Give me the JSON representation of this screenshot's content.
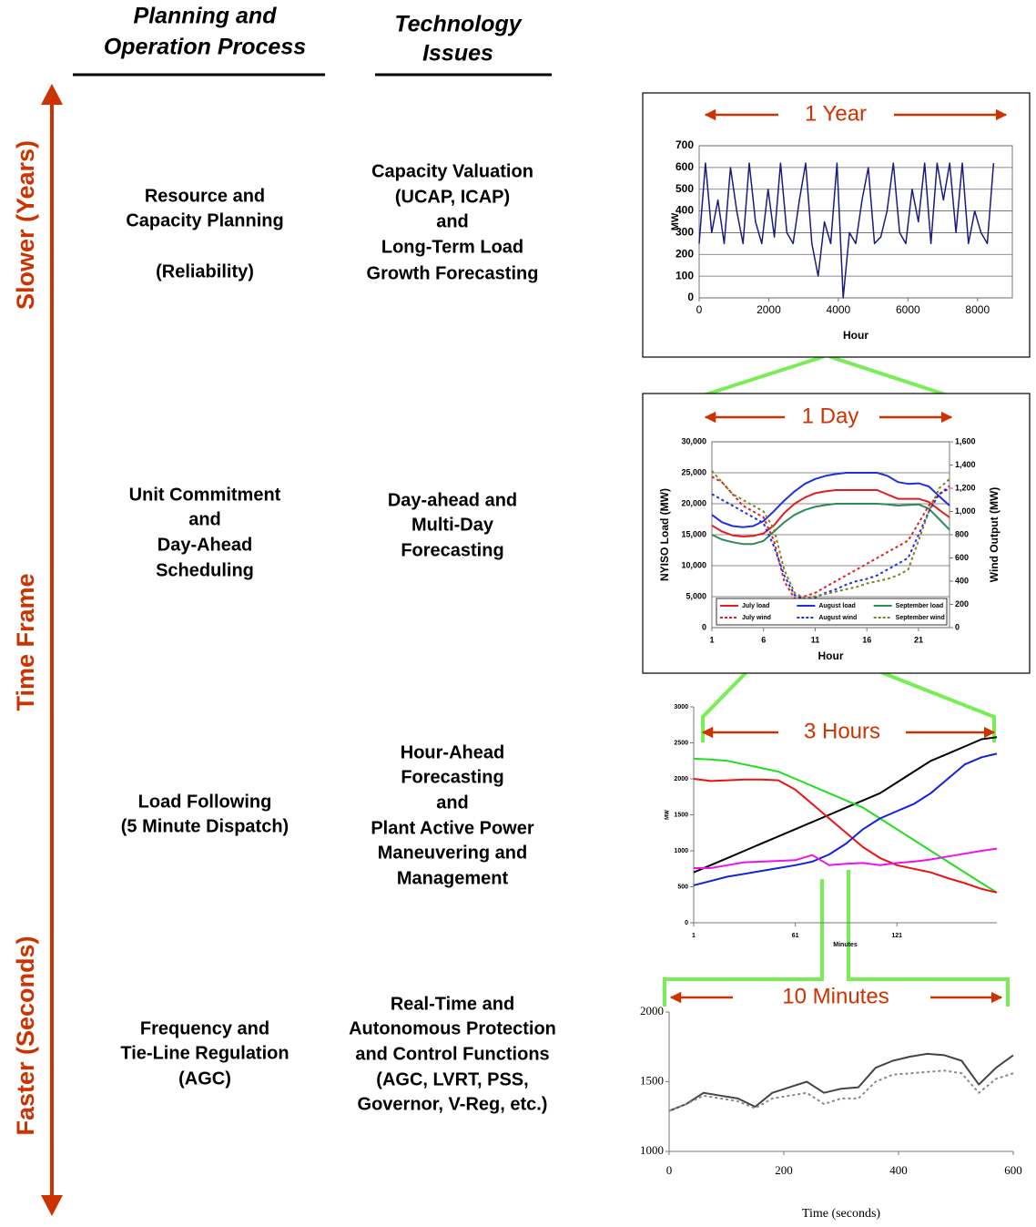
{
  "header": {
    "process": [
      "Planning and",
      "Operation Process"
    ],
    "issues": [
      "Technology",
      "Issues"
    ]
  },
  "axis": {
    "top": "Slower (Years)",
    "middle": "Time Frame",
    "bottom": "Faster (Seconds)"
  },
  "rows": [
    {
      "process": [
        "Resource and",
        "Capacity Planning",
        "(Reliability)"
      ],
      "issues": [
        "Capacity Valuation",
        "(UCAP, ICAP)",
        "and",
        "Long-Term Load",
        "Growth Forecasting"
      ]
    },
    {
      "process": [
        "Unit Commitment",
        "and",
        "Day-Ahead",
        "Scheduling"
      ],
      "issues": [
        "Day-ahead and",
        "Multi-Day",
        "Forecasting"
      ]
    },
    {
      "process": [
        "Load Following",
        "(5 Minute Dispatch)"
      ],
      "issues": [
        "Hour-Ahead",
        "Forecasting",
        "and",
        "Plant Active Power",
        "Maneuvering and",
        "Management"
      ]
    },
    {
      "process": [
        "Frequency and",
        "Tie-Line Regulation",
        "(AGC)"
      ],
      "issues": [
        "Real-Time and",
        "Autonomous Protection",
        "and Control Functions",
        "(AGC, LVRT, PSS,",
        "Governor, V-Reg, etc.)"
      ]
    }
  ],
  "charts": [
    {
      "type": "line",
      "title": "1 Year",
      "ylabel": "MW",
      "xlabel": "Hour",
      "grid": true,
      "xlim": [
        0,
        9000
      ],
      "ylim": [
        0,
        700
      ],
      "xticks": [
        0,
        2000,
        4000,
        6000,
        8000
      ],
      "yticks": [
        0,
        100,
        200,
        300,
        400,
        500,
        600,
        700
      ],
      "x": [
        0,
        180,
        360,
        540,
        720,
        900,
        1080,
        1260,
        1440,
        1620,
        1800,
        1980,
        2160,
        2340,
        2520,
        2700,
        2880,
        3060,
        3240,
        3420,
        3600,
        3780,
        3960,
        4140,
        4320,
        4500,
        4680,
        4860,
        5040,
        5220,
        5400,
        5580,
        5760,
        5940,
        6120,
        6300,
        6480,
        6660,
        6840,
        7020,
        7200,
        7380,
        7560,
        7740,
        7920,
        8100,
        8280,
        8460
      ],
      "series": [
        {
          "color": "#1a1a80",
          "values": [
            250,
            620,
            300,
            450,
            250,
            600,
            400,
            250,
            620,
            350,
            250,
            500,
            280,
            620,
            300,
            250,
            450,
            620,
            250,
            100,
            350,
            250,
            620,
            0,
            300,
            250,
            450,
            600,
            250,
            280,
            400,
            620,
            300,
            250,
            500,
            350,
            620,
            250,
            620,
            450,
            620,
            300,
            620,
            250,
            400,
            300,
            250,
            620
          ]
        }
      ]
    },
    {
      "type": "line",
      "title": "1 Day",
      "ylabel": "NYISO Load (MW)",
      "y2label": "Wind Output (MW)",
      "xlabel": "Hour",
      "grid": true,
      "xlim": [
        1,
        24
      ],
      "ylim": [
        0,
        30000
      ],
      "y2lim": [
        0,
        1600
      ],
      "xticks": [
        1,
        6,
        11,
        16,
        21
      ],
      "yticks": [
        0,
        {
          "value": 5000,
          "label": "5,000"
        },
        {
          "value": 10000,
          "label": "10,000"
        },
        {
          "value": 15000,
          "label": "15,000"
        },
        {
          "value": 20000,
          "label": "20,000"
        },
        {
          "value": 25000,
          "label": "25,000"
        },
        {
          "value": 30000,
          "label": "30,000"
        }
      ],
      "y2ticks": [
        0,
        200,
        400,
        600,
        800,
        {
          "value": 1000,
          "label": "1,000"
        },
        {
          "value": 1200,
          "label": "1,200"
        },
        {
          "value": 1400,
          "label": "1,400"
        },
        {
          "value": 1600,
          "label": "1,600"
        }
      ],
      "x": [
        1,
        2,
        3,
        4,
        5,
        6,
        7,
        8,
        9,
        10,
        11,
        12,
        13,
        14,
        15,
        16,
        17,
        18,
        19,
        20,
        21,
        22,
        23,
        24
      ],
      "series": [
        {
          "name": "July load",
          "color": "#e02020",
          "values": [
            16500,
            15500,
            14900,
            14700,
            14800,
            15200,
            16500,
            18500,
            20000,
            21000,
            21700,
            22000,
            22200,
            22200,
            22200,
            22200,
            22200,
            21500,
            20800,
            20800,
            20800,
            20300,
            19000,
            17800
          ]
        },
        {
          "name": "August load",
          "color": "#2030e0",
          "values": [
            18200,
            17000,
            16400,
            16200,
            16400,
            17200,
            18800,
            20500,
            22000,
            23200,
            24000,
            24500,
            24800,
            25000,
            25000,
            25000,
            25000,
            24500,
            23500,
            23200,
            23300,
            22800,
            21200,
            19700
          ]
        },
        {
          "name": "September load",
          "color": "#2e8b57",
          "values": [
            15000,
            14200,
            13800,
            13500,
            13500,
            14000,
            15500,
            17000,
            18200,
            19000,
            19500,
            19800,
            20000,
            20000,
            20000,
            20000,
            20000,
            19900,
            19700,
            19800,
            19900,
            19200,
            17500,
            15800
          ]
        },
        {
          "name": "July wind",
          "color": "#e02020",
          "dashed": true,
          "axis": "y2",
          "values": [
            1300,
            1250,
            1150,
            1050,
            1000,
            950,
            750,
            400,
            250,
            270,
            300,
            350,
            400,
            450,
            500,
            550,
            600,
            650,
            700,
            750,
            900,
            1050,
            1150,
            1220
          ]
        },
        {
          "name": "August wind",
          "color": "#2030e0",
          "dashed": true,
          "axis": "y2",
          "values": [
            1150,
            1100,
            1050,
            1000,
            950,
            900,
            700,
            450,
            280,
            240,
            260,
            300,
            330,
            370,
            400,
            420,
            450,
            500,
            550,
            600,
            800,
            1000,
            1150,
            1200
          ]
        },
        {
          "name": "September wind",
          "color": "#808020",
          "dashed": true,
          "axis": "y2",
          "values": [
            1350,
            1250,
            1150,
            1100,
            1050,
            1000,
            850,
            500,
            300,
            250,
            270,
            290,
            310,
            330,
            350,
            380,
            400,
            420,
            450,
            500,
            750,
            1000,
            1200,
            1280
          ]
        }
      ]
    },
    {
      "type": "line",
      "title": "3 Hours",
      "ylabel": "MW",
      "xlabel": "Minutes",
      "grid": false,
      "xlim": [
        1,
        180
      ],
      "ylim": [
        0,
        3000
      ],
      "xticks": [
        1,
        61,
        121
      ],
      "yticks": [
        0,
        500,
        1000,
        1500,
        2000,
        2500,
        3000
      ],
      "x": [
        1,
        11,
        21,
        31,
        41,
        51,
        61,
        71,
        81,
        91,
        101,
        111,
        121,
        131,
        141,
        151,
        161,
        171,
        180
      ],
      "series": [
        {
          "color": "#000000",
          "values": [
            700,
            800,
            900,
            1000,
            1100,
            1200,
            1300,
            1400,
            1500,
            1600,
            1700,
            1800,
            1950,
            2100,
            2250,
            2350,
            2450,
            2550,
            2580
          ]
        },
        {
          "color": "#22dd22",
          "values": [
            2280,
            2270,
            2250,
            2200,
            2150,
            2100,
            2000,
            1900,
            1800,
            1700,
            1600,
            1450,
            1300,
            1150,
            1000,
            850,
            700,
            550,
            420
          ]
        },
        {
          "color": "#ee1111",
          "values": [
            2000,
            1970,
            1980,
            1990,
            1990,
            1980,
            1850,
            1650,
            1450,
            1250,
            1050,
            900,
            800,
            750,
            700,
            620,
            550,
            470,
            420
          ]
        },
        {
          "color": "#1122dd",
          "values": [
            520,
            580,
            640,
            680,
            720,
            760,
            800,
            850,
            950,
            1100,
            1300,
            1450,
            1550,
            1650,
            1800,
            2000,
            2200,
            2300,
            2350
          ]
        },
        {
          "color": "#ee11ee",
          "values": [
            760,
            760,
            800,
            840,
            850,
            860,
            870,
            940,
            800,
            820,
            830,
            800,
            830,
            850,
            880,
            920,
            960,
            1000,
            1030
          ]
        }
      ]
    },
    {
      "type": "line",
      "title": "10 Minutes",
      "xlabel": "Time (seconds)",
      "grid": false,
      "xlim": [
        0,
        600
      ],
      "ylim": [
        1000,
        2000
      ],
      "xticks": [
        0,
        200,
        400,
        600
      ],
      "yticks": [
        1000,
        1500,
        2000
      ],
      "x": [
        0,
        30,
        60,
        90,
        120,
        150,
        180,
        210,
        240,
        270,
        300,
        330,
        360,
        390,
        420,
        450,
        480,
        510,
        540,
        570,
        600
      ],
      "series": [
        {
          "color": "#444444",
          "values": [
            1290,
            1340,
            1420,
            1400,
            1380,
            1320,
            1420,
            1460,
            1500,
            1420,
            1450,
            1460,
            1600,
            1650,
            1680,
            1700,
            1690,
            1650,
            1480,
            1600,
            1690
          ]
        },
        {
          "color": "#888888",
          "dashed": true,
          "values": [
            1290,
            1340,
            1400,
            1380,
            1360,
            1310,
            1380,
            1400,
            1420,
            1340,
            1380,
            1380,
            1500,
            1550,
            1560,
            1570,
            1580,
            1560,
            1420,
            1520,
            1560
          ]
        }
      ]
    }
  ]
}
